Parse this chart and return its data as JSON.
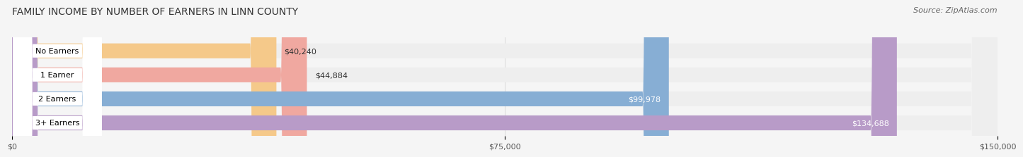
{
  "title": "FAMILY INCOME BY NUMBER OF EARNERS IN LINN COUNTY",
  "source": "Source: ZipAtlas.com",
  "categories": [
    "No Earners",
    "1 Earner",
    "2 Earners",
    "3+ Earners"
  ],
  "values": [
    40240,
    44884,
    99978,
    134688
  ],
  "max_value": 150000,
  "bar_colors": [
    "#f5c98a",
    "#f0a8a0",
    "#87aed4",
    "#b89bc8"
  ],
  "bar_bg_color": "#eeeeee",
  "value_labels": [
    "$40,240",
    "$44,884",
    "$99,978",
    "$134,688"
  ],
  "x_ticks": [
    0,
    75000,
    150000
  ],
  "x_tick_labels": [
    "$0",
    "$75,000",
    "$150,000"
  ],
  "title_fontsize": 10,
  "source_fontsize": 8,
  "bar_label_fontsize": 8,
  "value_fontsize": 8,
  "tick_fontsize": 8,
  "background_color": "#f5f5f5",
  "bar_height": 0.62
}
